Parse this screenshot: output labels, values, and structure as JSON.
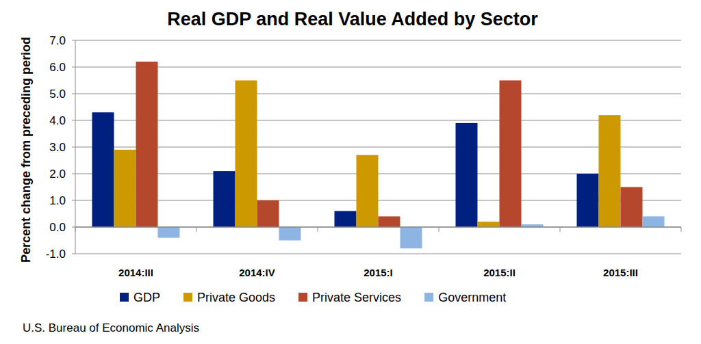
{
  "chart_data": {
    "type": "bar",
    "title": "Real GDP and Real Value Added by Sector",
    "y_label": "Percent change from preceding period",
    "source": "U.S. Bureau of Economic Analysis",
    "categories": [
      "2014:III",
      "2014:IV",
      "2015:I",
      "2015:II",
      "2015:III"
    ],
    "series": [
      {
        "name": "GDP",
        "color": "#002080",
        "values": [
          4.3,
          2.1,
          0.6,
          3.9,
          2.0
        ]
      },
      {
        "name": "Private Goods",
        "color": "#CC9900",
        "values": [
          2.9,
          5.5,
          2.7,
          0.2,
          4.2
        ]
      },
      {
        "name": "Private Services",
        "color": "#B5472C",
        "values": [
          6.2,
          1.0,
          0.4,
          5.5,
          1.5
        ]
      },
      {
        "name": "Government",
        "color": "#8DB4E2",
        "values": [
          -0.4,
          -0.5,
          -0.8,
          0.1,
          0.4
        ]
      }
    ],
    "ylim": [
      -1,
      7
    ],
    "yticks": [
      {
        "value": -1,
        "label": "-1.0"
      },
      {
        "value": 0,
        "label": "0.0"
      },
      {
        "value": 1,
        "label": "1.0"
      },
      {
        "value": 2,
        "label": "2.0"
      },
      {
        "value": 3,
        "label": "3.0"
      },
      {
        "value": 4,
        "label": "4.0"
      },
      {
        "value": 5,
        "label": "5.0"
      },
      {
        "value": 6,
        "label": "6.0"
      },
      {
        "value": 7,
        "label": "7.0"
      }
    ],
    "grid": true,
    "legend": "bottom"
  }
}
